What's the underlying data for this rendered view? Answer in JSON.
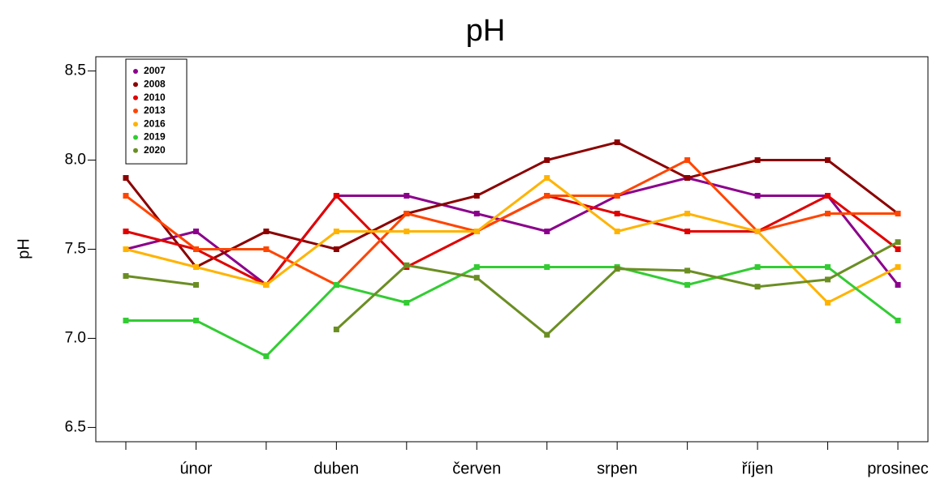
{
  "chart_data": {
    "type": "line",
    "title": "pH",
    "ylabel": "pH",
    "categories": [
      null,
      "únor",
      null,
      "duben",
      null,
      "červen",
      null,
      "srpen",
      null,
      "říjen",
      null,
      "prosinec"
    ],
    "series": [
      {
        "name": "2007",
        "color": "#8b008b",
        "values": [
          7.5,
          7.6,
          7.3,
          7.8,
          7.8,
          7.7,
          7.6,
          7.8,
          7.9,
          7.8,
          7.8,
          7.3
        ]
      },
      {
        "name": "2008",
        "color": "#8b0000",
        "values": [
          7.9,
          7.4,
          7.6,
          7.5,
          7.7,
          7.8,
          8.0,
          8.1,
          7.9,
          8.0,
          8.0,
          7.7
        ]
      },
      {
        "name": "2010",
        "color": "#e00000",
        "values": [
          7.6,
          7.5,
          7.3,
          7.8,
          7.4,
          7.6,
          7.8,
          7.7,
          7.6,
          7.6,
          7.8,
          7.5
        ]
      },
      {
        "name": "2013",
        "color": "#ff4500",
        "values": [
          7.8,
          7.5,
          7.5,
          7.3,
          7.7,
          7.6,
          7.8,
          7.8,
          8.0,
          7.6,
          7.7,
          7.7
        ]
      },
      {
        "name": "2016",
        "color": "#ffb300",
        "values": [
          7.5,
          7.4,
          7.3,
          7.6,
          7.6,
          7.6,
          7.9,
          7.6,
          7.7,
          7.6,
          7.2,
          7.4
        ]
      },
      {
        "name": "2019",
        "color": "#33cc33",
        "values": [
          7.1,
          7.1,
          6.9,
          7.3,
          7.2,
          7.4,
          7.4,
          7.4,
          7.3,
          7.4,
          7.4,
          7.1
        ]
      },
      {
        "name": "2020",
        "color": "#6b8e23",
        "values": [
          7.35,
          7.3,
          null,
          7.05,
          7.41,
          7.34,
          7.02,
          7.39,
          7.38,
          7.29,
          7.33,
          7.54
        ]
      }
    ],
    "ylim": [
      6.42,
      8.58
    ],
    "yticks": [
      6.5,
      {
        "value": 7.0,
        "label": "7.0"
      },
      7.5,
      {
        "value": 8.0,
        "label": "8.0"
      },
      8.5
    ],
    "legend": "top-left"
  }
}
